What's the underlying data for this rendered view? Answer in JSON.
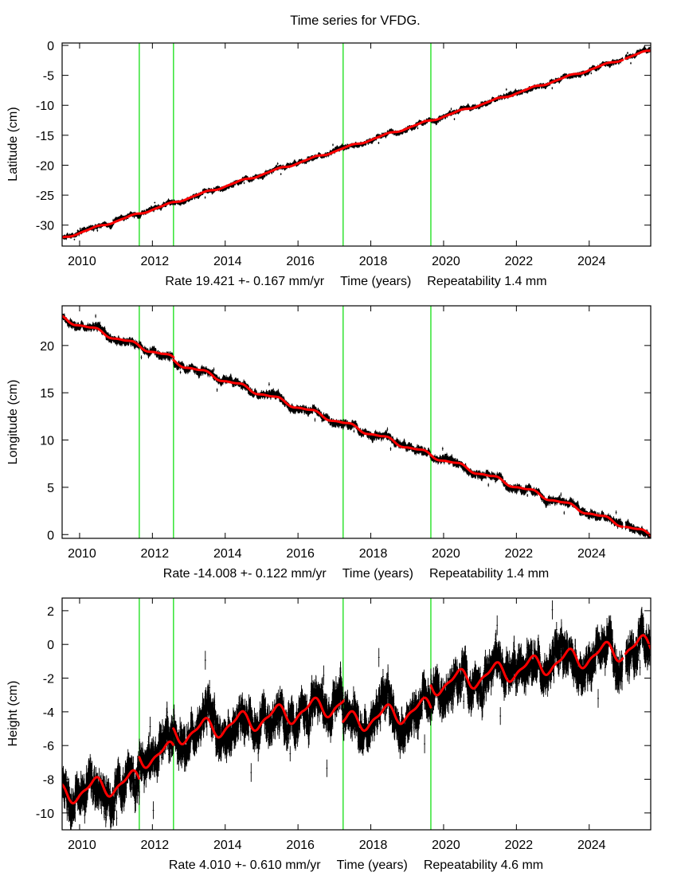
{
  "title": "Time series for VFDG.",
  "colors": {
    "data": "#000000",
    "fit": "#ff0000",
    "offset_lines": "#00dd00",
    "axes": "#000000"
  },
  "chart_data": [
    {
      "type": "line",
      "name": "latitude",
      "title": "Time series for VFDG.",
      "ylabel": "Latitude (cm)",
      "xlabel_rate": "Rate 19.421 +- 0.167 mm/yr",
      "xlabel": "Time (years)",
      "xlabel_repeat": "Repeatability 1.4 mm",
      "xlim": [
        2009.52,
        2025.69
      ],
      "ylim": [
        -33.5,
        0.4
      ],
      "xticks": [
        2010,
        2012,
        2014,
        2016,
        2018,
        2020,
        2022,
        2024
      ],
      "xtick_labels": [
        "2010",
        "2012",
        "2014",
        "2016",
        "2018",
        "2020",
        "2022",
        "2024"
      ],
      "yticks": [
        0,
        -5,
        -10,
        -15,
        -20,
        -25,
        -30
      ],
      "ytick_labels": [
        "0",
        "-5",
        "-10",
        "-15",
        "-20",
        "-25",
        "-30"
      ],
      "offset_epochs": [
        2011.64,
        2012.58,
        2017.24,
        2019.65
      ],
      "fit": {
        "start_value": -32.2,
        "rate_cm_per_yr": 1.9421,
        "annual_amp": 0.15,
        "offsets": [
          0,
          0,
          0,
          0
        ]
      },
      "noise_cm": 0.2,
      "gaps": [
        [
          2024.92,
          2025.0
        ]
      ],
      "series": [
        {
          "name": "observations",
          "color": "#000000"
        },
        {
          "name": "model fit",
          "color": "#ff0000"
        }
      ]
    },
    {
      "type": "line",
      "name": "longitude",
      "ylabel": "Longitude (cm)",
      "xlabel_rate": "Rate -14.008 +- 0.122 mm/yr",
      "xlabel": "Time (years)",
      "xlabel_repeat": "Repeatability 1.4 mm",
      "xlim": [
        2009.52,
        2025.69
      ],
      "ylim": [
        -0.4,
        24.2
      ],
      "xticks": [
        2010,
        2012,
        2014,
        2016,
        2018,
        2020,
        2022,
        2024
      ],
      "xtick_labels": [
        "2010",
        "2012",
        "2014",
        "2016",
        "2018",
        "2020",
        "2022",
        "2024"
      ],
      "yticks": [
        0,
        5,
        10,
        15,
        20
      ],
      "ytick_labels": [
        "0",
        "5",
        "10",
        "15",
        "20"
      ],
      "offset_epochs": [
        2011.64,
        2012.58,
        2017.24,
        2019.65
      ],
      "fit": {
        "start_value": 22.9,
        "rate_cm_per_yr": -1.4008,
        "annual_amp": 0.22,
        "offsets": [
          0,
          -0.3,
          0,
          0
        ]
      },
      "noise_cm": 0.2,
      "gaps": [
        [
          2024.92,
          2025.0
        ]
      ],
      "series": [
        {
          "name": "observations",
          "color": "#000000"
        },
        {
          "name": "model fit",
          "color": "#ff0000"
        }
      ]
    },
    {
      "type": "line",
      "name": "height",
      "ylabel": "Height (cm)",
      "xlabel_rate": "Rate 4.010 +- 0.610 mm/yr",
      "xlabel": "Time (years)",
      "xlabel_repeat": "Repeatability 4.6 mm",
      "xlim": [
        2009.52,
        2025.69
      ],
      "ylim": [
        -11.0,
        2.75
      ],
      "xticks": [
        2010,
        2012,
        2014,
        2016,
        2018,
        2020,
        2022,
        2024
      ],
      "xtick_labels": [
        "2010",
        "2012",
        "2014",
        "2016",
        "2018",
        "2020",
        "2022",
        "2024"
      ],
      "yticks": [
        2,
        0,
        -2,
        -4,
        -6,
        -8,
        -10
      ],
      "ytick_labels": [
        "2",
        "0",
        "-2",
        "-4",
        "-6",
        "-8",
        "-10"
      ],
      "offset_epochs": [
        2011.64,
        2012.58,
        2017.24,
        2019.65
      ],
      "fit": {
        "start_value": -8.9,
        "rate_cm_per_yr": 0.401,
        "annual_amp": 0.55,
        "offsets": [
          1.3,
          1.0,
          -1.2,
          1.3
        ]
      },
      "noise_cm": 0.55,
      "gaps": [
        [
          2024.92,
          2025.0
        ]
      ],
      "series": [
        {
          "name": "observations",
          "color": "#000000"
        },
        {
          "name": "model fit",
          "color": "#ff0000"
        }
      ]
    }
  ]
}
